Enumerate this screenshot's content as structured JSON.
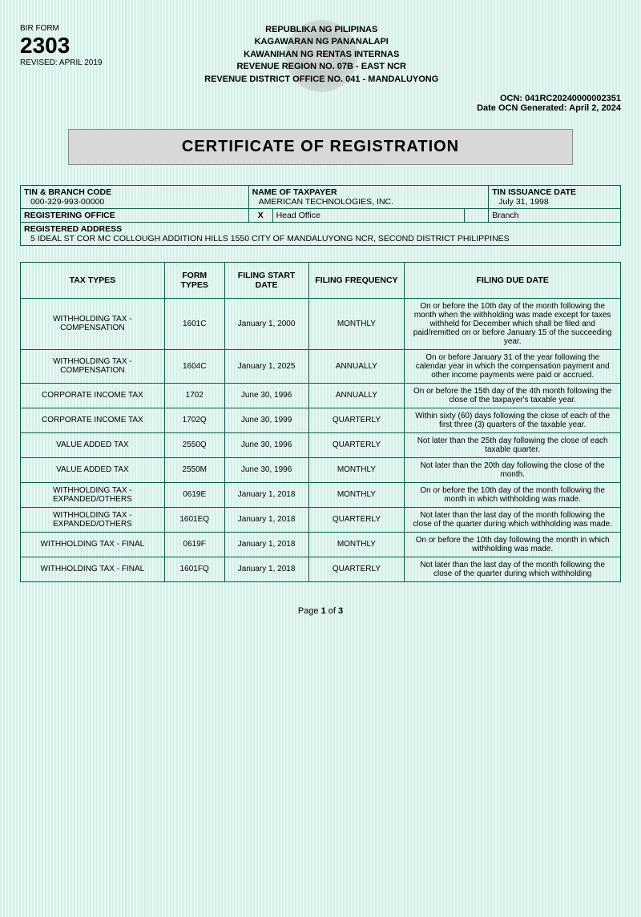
{
  "form": {
    "label": "BIR FORM",
    "number": "2303",
    "revised": "REVISED: APRIL 2019"
  },
  "header": {
    "l1": "REPUBLIKA NG PILIPINAS",
    "l2": "KAGAWARAN NG PANANALAPI",
    "l3": "KAWANIHAN NG RENTAS INTERNAS",
    "l4": "REVENUE REGION NO. 07B - EAST NCR",
    "l5": "REVENUE DISTRICT OFFICE NO. 041 - MANDALUYONG"
  },
  "ocn": {
    "num": "OCN: 041RC20240000002351",
    "date": "Date OCN Generated: April 2, 2024"
  },
  "title": "CERTIFICATE OF REGISTRATION",
  "info": {
    "tin_lbl": "TIN & BRANCH CODE",
    "tin_val": "000-329-993-00000",
    "name_lbl": "NAME OF TAXPAYER",
    "name_val": "AMERICAN TECHNOLOGIES, INC.",
    "iss_lbl": "TIN ISSUANCE DATE",
    "iss_val": "July 31, 1998",
    "reg_off_lbl": "REGISTERING OFFICE",
    "head": "Head Office",
    "branch": "Branch",
    "addr_lbl": "REGISTERED ADDRESS",
    "addr_val": "5 IDEAL ST COR MC COLLOUGH  ADDITION HILLS 1550 CITY OF MANDALUYONG NCR, SECOND DISTRICT PHILIPPINES"
  },
  "cols": {
    "c1": "TAX TYPES",
    "c2": "FORM TYPES",
    "c3": "FILING START DATE",
    "c4": "FILING FREQUENCY",
    "c5": "FILING DUE DATE"
  },
  "rows": [
    {
      "type": "WITHHOLDING TAX - COMPENSATION",
      "form": "1601C",
      "start": "January 1, 2000",
      "freq": "MONTHLY",
      "due": "On or before the 10th day of the month following the month when the withholding was made except for taxes withheld for December which shall be filed and paid/remitted on or before January 15 of the succeeding year."
    },
    {
      "type": "WITHHOLDING TAX - COMPENSATION",
      "form": "1604C",
      "start": "January 1, 2025",
      "freq": "ANNUALLY",
      "due": "On or before January 31 of the year following the calendar year in which the compensation payment and other income payments were paid or accrued."
    },
    {
      "type": "CORPORATE INCOME TAX",
      "form": "1702",
      "start": "June 30, 1996",
      "freq": "ANNUALLY",
      "due": "On or before the 15th day of the 4th month following the close of the taxpayer's taxable year."
    },
    {
      "type": "CORPORATE INCOME TAX",
      "form": "1702Q",
      "start": "June 30, 1999",
      "freq": "QUARTERLY",
      "due": "Within sixty (60) days following the close of each of the first three (3) quarters of the taxable year."
    },
    {
      "type": "VALUE ADDED TAX",
      "form": "2550Q",
      "start": "June 30, 1996",
      "freq": "QUARTERLY",
      "due": "Not later than the 25th day following the close of each taxable quarter."
    },
    {
      "type": "VALUE ADDED TAX",
      "form": "2550M",
      "start": "June 30, 1996",
      "freq": "MONTHLY",
      "due": "Not later than the 20th day following the close of the month."
    },
    {
      "type": "WITHHOLDING TAX - EXPANDED/OTHERS",
      "form": "0619E",
      "start": "January 1, 2018",
      "freq": "MONTHLY",
      "due": "On or before the 10th day of the month following the month in which withholding was made."
    },
    {
      "type": "WITHHOLDING TAX - EXPANDED/OTHERS",
      "form": "1601EQ",
      "start": "January 1, 2018",
      "freq": "QUARTERLY",
      "due": "Not later than the last day of the month following the close of the quarter during which withholding was made."
    },
    {
      "type": "WITHHOLDING TAX - FINAL",
      "form": "0619F",
      "start": "January 1, 2018",
      "freq": "MONTHLY",
      "due": "On or before the 10th day following the month in which withholding was made."
    },
    {
      "type": "WITHHOLDING TAX - FINAL",
      "form": "1601FQ",
      "start": "January 1, 2018",
      "freq": "QUARTERLY",
      "due": "Not later than the last day of the month following the close of the quarter during which withholding"
    }
  ],
  "page": "Page 1 of 3"
}
